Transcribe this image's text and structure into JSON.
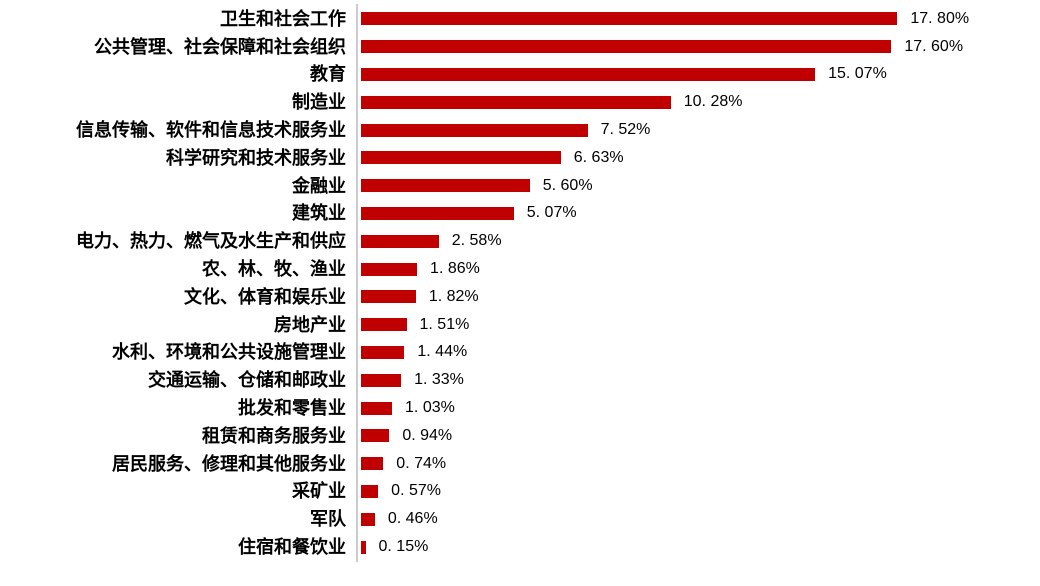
{
  "chart_data": {
    "type": "bar",
    "orientation": "horizontal",
    "title": "",
    "xlabel": "",
    "ylabel": "",
    "xlim": [
      0,
      22.6
    ],
    "grid": false,
    "legend": false,
    "value_label_position": "outside-end",
    "bar_color": "#C00000",
    "axis_color": "#CCCCCC",
    "text_color": "#000000",
    "background_color": "#FFFFFF",
    "categories": [
      "卫生和社会工作",
      "公共管理、社会保障和社会组织",
      "教育",
      "制造业",
      "信息传输、软件和信息技术服务业",
      "科学研究和技术服务业",
      "金融业",
      "建筑业",
      "电力、热力、燃气及水生产和供应",
      "农、林、牧、渔业",
      "文化、体育和娱乐业",
      "房地产业",
      "水利、环境和公共设施管理业",
      "交通运输、仓储和邮政业",
      "批发和零售业",
      "租赁和商务服务业",
      "居民服务、修理和其他服务业",
      "采矿业",
      "军队",
      "住宿和餐饮业"
    ],
    "values": [
      17.8,
      17.6,
      15.07,
      10.28,
      7.52,
      6.63,
      5.6,
      5.07,
      2.58,
      1.86,
      1.82,
      1.51,
      1.44,
      1.33,
      1.03,
      0.94,
      0.74,
      0.57,
      0.46,
      0.15
    ],
    "value_labels": [
      "17. 80%",
      "17. 60%",
      "15. 07%",
      "10. 28%",
      "7. 52%",
      "6. 63%",
      "5. 60%",
      "5. 07%",
      "2. 58%",
      "1. 86%",
      "1. 82%",
      "1. 51%",
      "1. 44%",
      "1. 33%",
      "1. 03%",
      "0. 94%",
      "0. 74%",
      "0. 57%",
      "0. 46%",
      "0. 15%"
    ]
  }
}
